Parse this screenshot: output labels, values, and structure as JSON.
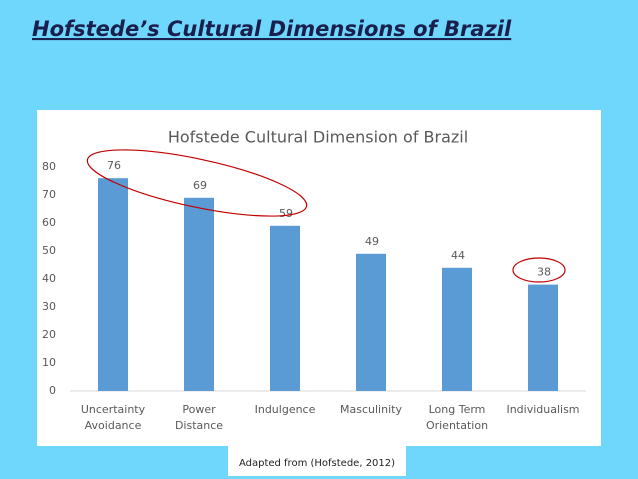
{
  "slide_title": "Hofstede’s Cultural Dimensions of Brazil",
  "chart_data": {
    "type": "bar",
    "title": "Hofstede Cultural Dimension of Brazil",
    "categories": [
      "Uncertainty Avoidance",
      "Power Distance",
      "Indulgence",
      "Masculinity",
      "Long Term Orientation",
      "Individualism"
    ],
    "values": [
      76,
      69,
      59,
      49,
      44,
      38
    ],
    "color": "#5b9bd5",
    "ylim": [
      0,
      80
    ],
    "yticks": [
      0,
      10,
      20,
      30,
      40,
      50,
      60,
      70,
      80
    ],
    "grid": false,
    "source": "Adapted from (Hofstede, 2012)"
  }
}
